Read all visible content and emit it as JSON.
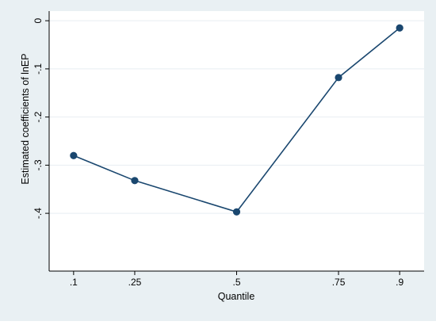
{
  "chart_data": {
    "type": "line",
    "xlabel": "Quantile",
    "ylabel": "Estimated coefficients of lnEP",
    "x": [
      0.1,
      0.25,
      0.5,
      0.75,
      0.9
    ],
    "x_tick_labels": [
      ".1",
      ".25",
      ".5",
      ".75",
      ".9"
    ],
    "y": [
      -0.28,
      -0.332,
      -0.397,
      -0.118,
      -0.015
    ],
    "y_ticks": [
      0,
      -0.1,
      -0.2,
      -0.3,
      -0.4
    ],
    "y_tick_labels": [
      "0",
      "-.1",
      "-.2",
      "-.3",
      "-.4"
    ],
    "xlim": [
      0.04,
      0.96
    ],
    "ylim": [
      -0.52,
      0.02
    ],
    "grid": true,
    "legend": "none",
    "colors": {
      "outer_background": "#e9f0f3",
      "plot_background": "#ffffff",
      "series": "#1a476f",
      "grid": "#e8eef2",
      "axis": "#000000"
    }
  }
}
